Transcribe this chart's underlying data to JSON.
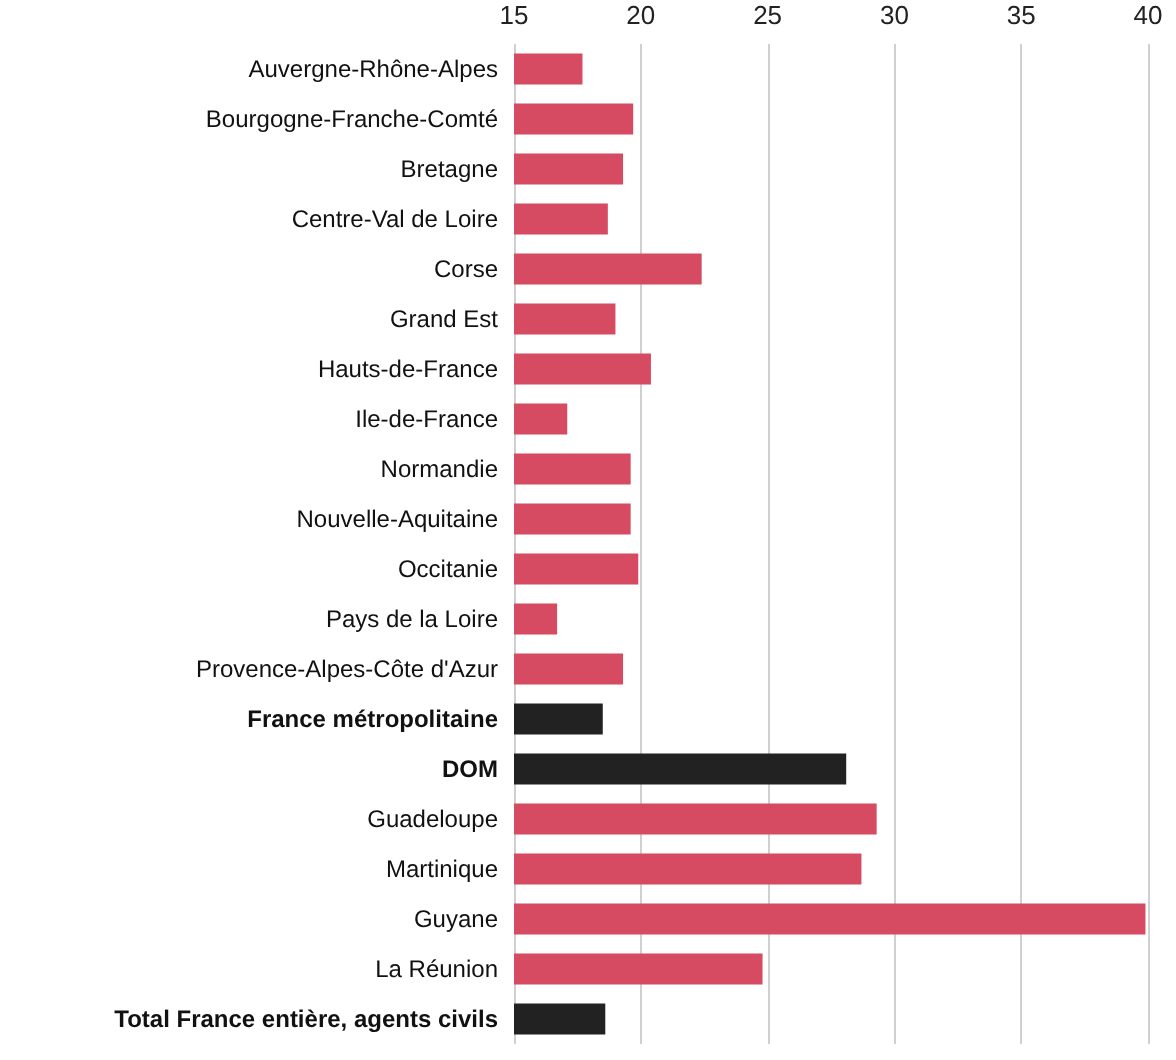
{
  "chart_data": {
    "type": "bar",
    "orientation": "horizontal",
    "categories": [
      "Auvergne-Rhône-Alpes",
      "Bourgogne-Franche-Comté",
      "Bretagne",
      "Centre-Val de Loire",
      "Corse",
      "Grand Est",
      "Hauts-de-France",
      "Ile-de-France",
      "Normandie",
      "Nouvelle-Aquitaine",
      "Occitanie",
      "Pays de la Loire",
      "Provence-Alpes-Côte d'Azur",
      "France métropolitaine",
      "DOM",
      "Guadeloupe",
      "Martinique",
      "Guyane",
      "La Réunion",
      "Total France entière, agents civils"
    ],
    "values": [
      17.7,
      19.7,
      19.3,
      18.7,
      22.4,
      19.0,
      20.4,
      17.1,
      19.6,
      19.6,
      19.9,
      16.7,
      19.3,
      18.5,
      28.1,
      29.3,
      28.7,
      39.9,
      24.8,
      18.6
    ],
    "colors": [
      "#d64a62",
      "#d64a62",
      "#d64a62",
      "#d64a62",
      "#d64a62",
      "#d64a62",
      "#d64a62",
      "#d64a62",
      "#d64a62",
      "#d64a62",
      "#d64a62",
      "#d64a62",
      "#d64a62",
      "#222222",
      "#222222",
      "#d64a62",
      "#d64a62",
      "#d64a62",
      "#d64a62",
      "#222222"
    ],
    "xlim": [
      15,
      40
    ],
    "xticks": [
      15,
      20,
      25,
      30,
      35,
      40
    ],
    "grid": "x"
  }
}
